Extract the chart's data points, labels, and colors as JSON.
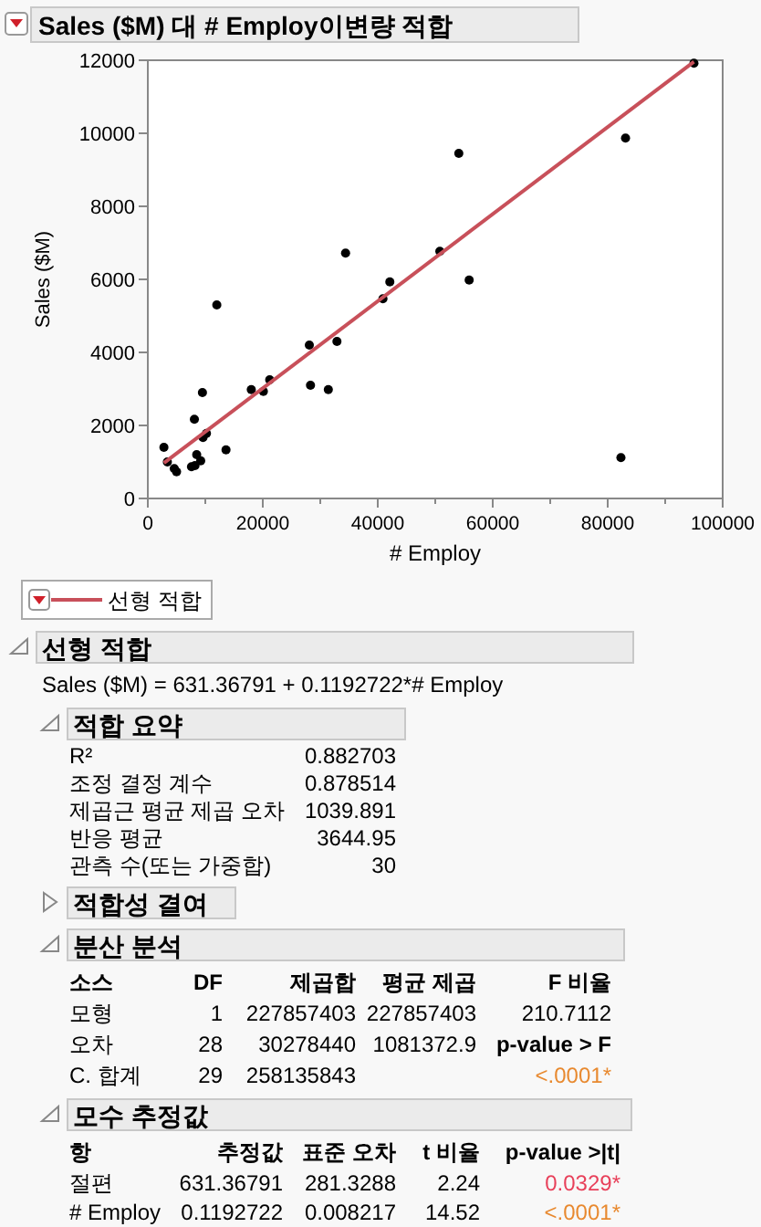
{
  "chart_data": {
    "type": "scatter",
    "title": "Sales ($M) 대 # Employ이변량 적합",
    "xlabel": "# Employ",
    "ylabel": "Sales ($M)",
    "xlim": [
      0,
      100000
    ],
    "xticks": [
      0,
      20000,
      40000,
      60000,
      80000,
      100000
    ],
    "ylim": [
      0,
      12000
    ],
    "yticks": [
      0,
      2000,
      4000,
      6000,
      8000,
      10000,
      12000
    ],
    "legend": "bottom",
    "series": [
      {
        "marker": "circle",
        "color": "#000000",
        "x": [
          2800,
          3400,
          4600,
          5000,
          7600,
          8200,
          8100,
          8500,
          9200,
          9500,
          9600,
          10200,
          12000,
          13600,
          18000,
          20100,
          21200,
          28100,
          28300,
          31400,
          32900,
          34400,
          40900,
          42100,
          50800,
          54100,
          55900,
          82300,
          83100,
          95000
        ],
        "values": [
          1400,
          1000,
          820,
          730,
          870,
          900,
          2170,
          1200,
          1030,
          2900,
          1670,
          1780,
          5300,
          1330,
          2980,
          2930,
          3250,
          4200,
          3100,
          2980,
          4300,
          6720,
          5470,
          5930,
          6770,
          9450,
          5980,
          1120,
          9870,
          11920
        ]
      },
      {
        "type": "line",
        "name": "선형 적합",
        "color": "#c8505a",
        "x": [
          2800,
          95000
        ],
        "values": [
          970,
          11960
        ],
        "marker": "none"
      }
    ],
    "annotations": [
      "선형 적합",
      "Sales ($M) = 631.36791 + 0.1192722*# Employ",
      "적합 요약",
      "R²\t0.882703",
      "조정 결정 계수\t0.878514",
      "제곱근 평균 제곱 오차\t1039.891",
      "반응 평균\t3644.95",
      "관측 수(또는 가중합)\t30",
      "적합성 결여",
      "분산 분석",
      "소스\tDF\t제곱합\t평균 제곱\tF 비율",
      "모형\t1\t227857403\t227857403\t210.7112",
      "오차\t28\t30278440\t1081372.9\tp-value > F",
      "C. 합계\t29\t258135843\t\t<.0001*",
      "모수 추정값",
      "항\t추정값\t표준 오차\tt 비율\tp-value >|t|",
      "절편\t631.36791\t281.3288\t2.24\t0.0329*",
      "# Employ\t0.1192722\t0.008217\t14.52\t<.0001*"
    ]
  }
}
